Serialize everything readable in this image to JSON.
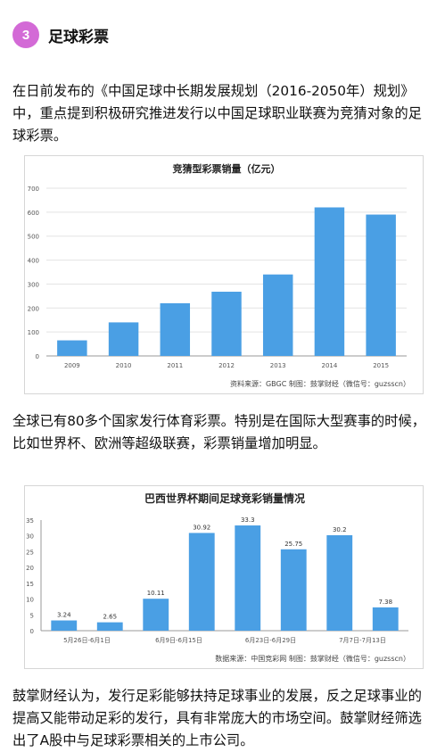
{
  "section": {
    "number": "3",
    "title": "足球彩票"
  },
  "paragraphs": {
    "p1": "在日前发布的《中国足球中长期发展规划（2016-2050年）规划》中，重点提到积极研究推进发行以中国足球职业联赛为竞猜对象的足球彩票。",
    "p2": "全球已有80多个国家发行体育彩票。特别是在国际大型赛事的时候，比如世界杯、欧洲等超级联赛，彩票销量增加明显。",
    "p3": "鼓掌财经认为，发行足彩能够扶持足球事业的发展，反之足球事业的提高又能带动足彩的发行，具有非常庞大的市场空间。鼓掌财经筛选出了A股中与足球彩票相关的上市公司。"
  },
  "colors": {
    "bar": "#4a9fe4",
    "accent_circle": "#d36ad6",
    "grid": "#e3e3e3"
  },
  "chart_data": [
    {
      "type": "bar",
      "title": "竞猜型彩票销量（亿元）",
      "categories": [
        "2009",
        "2010",
        "2011",
        "2012",
        "2013",
        "2014",
        "2015"
      ],
      "values": [
        65,
        140,
        220,
        268,
        340,
        620,
        590
      ],
      "yticks": [
        0,
        100,
        200,
        300,
        400,
        500,
        600,
        700
      ],
      "ylim": [
        0,
        700
      ],
      "grid": true,
      "source": "资料来源：GBGC  制图：鼓掌财经（微信号：guzsscn）"
    },
    {
      "type": "bar",
      "title": "巴西世界杯期间足球竞彩销量情况",
      "categories": [
        "5月26日-6月1日",
        "",
        "6月9日-6月15日",
        "",
        "6月23日-6月29日",
        "",
        "7月7日-7月13日",
        ""
      ],
      "values": [
        3.24,
        2.65,
        10.11,
        30.92,
        33.3,
        25.75,
        30.2,
        7.38
      ],
      "value_labels": [
        "3.24",
        "2.65",
        "10.11",
        "30.92",
        "33.3",
        "25.75",
        "30.2",
        "7.38"
      ],
      "yticks": [
        0,
        5,
        10,
        15,
        20,
        25,
        30,
        35
      ],
      "ylim": [
        0,
        35
      ],
      "grid": false,
      "source": "数据来源：中国竞彩网  制图：鼓掌财经（微信号：guzsscn）"
    }
  ]
}
